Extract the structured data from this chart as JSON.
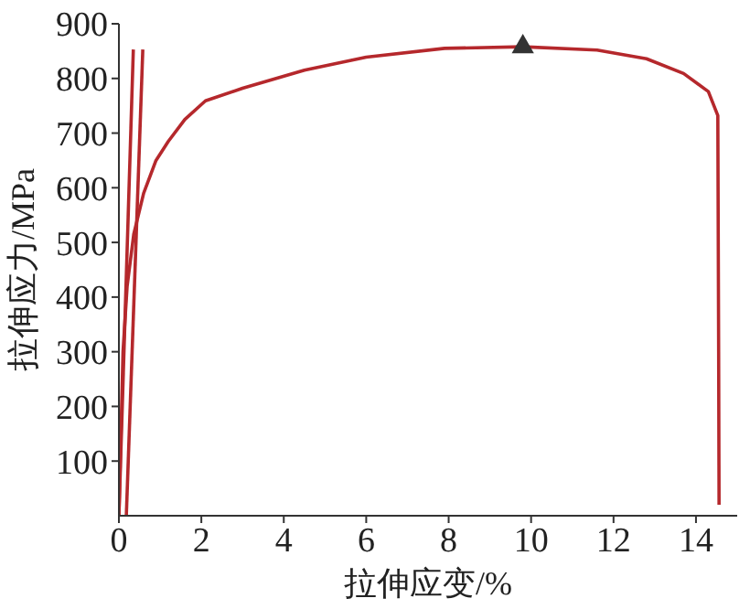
{
  "chart_data": {
    "type": "line",
    "xlabel": "拉伸应变/%",
    "ylabel": "拉伸应力/MPa",
    "xlim": [
      0,
      15
    ],
    "ylim": [
      0,
      900
    ],
    "xticks": [
      0,
      2,
      4,
      6,
      8,
      10,
      12,
      14
    ],
    "yticks": [
      100,
      200,
      300,
      400,
      500,
      600,
      700,
      800,
      900
    ],
    "grid": false,
    "legend": false,
    "marker": "none",
    "line_style": "solid",
    "series": [
      {
        "color": "#b5282c",
        "x": [
          0,
          0.1,
          0.2,
          0.36,
          0.6,
          0.9,
          1.2,
          1.6,
          2.1,
          3.0,
          4.5,
          6.0,
          7.9,
          9.8,
          11.6,
          12.8,
          13.7,
          14.3,
          14.53,
          14.55,
          14.56
        ],
        "values": [
          0,
          300,
          420,
          515,
          590,
          650,
          685,
          725,
          759,
          782,
          815,
          839,
          855,
          858,
          852,
          836,
          809,
          776,
          732,
          300,
          20
        ]
      },
      {
        "color": "#b5282c",
        "x": [
          0,
          0.35
        ],
        "values": [
          0,
          853
        ]
      },
      {
        "color": "#b5282c",
        "x": [
          0.18,
          0.58
        ],
        "values": [
          0,
          853
        ]
      },
      {
        "type": "scatter",
        "marker": "triangle",
        "color": "#333333",
        "x": [
          9.8
        ],
        "values": [
          858
        ]
      }
    ]
  }
}
